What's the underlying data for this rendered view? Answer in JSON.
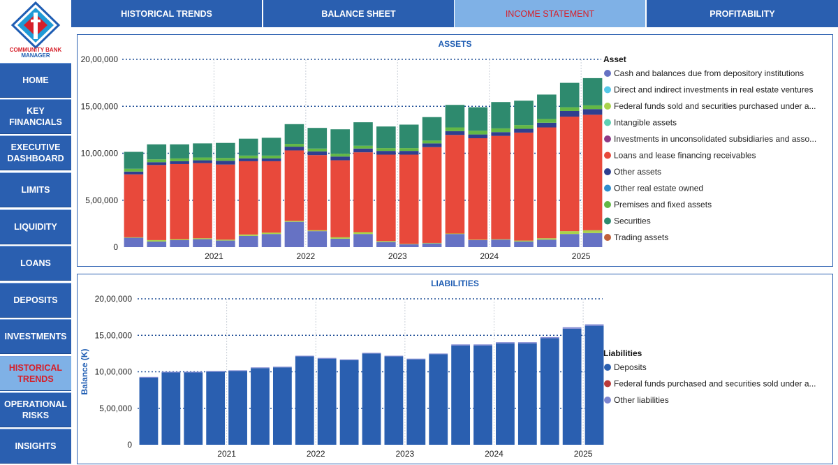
{
  "app": {
    "logo_line1": "COMMUNITY BANK",
    "logo_line2": "MANAGER",
    "colors": {
      "nav": "#2a5fb0",
      "nav_active": "#7fb1e6",
      "active_text": "#d6202a"
    }
  },
  "sidebar": {
    "items": [
      {
        "label": "HOME",
        "active": false
      },
      {
        "label": "KEY\nFINANCIALS",
        "active": false
      },
      {
        "label": "EXECUTIVE\nDASHBOARD",
        "active": false
      },
      {
        "label": "LIMITS",
        "active": false
      },
      {
        "label": "LIQUIDITY",
        "active": false
      },
      {
        "label": "LOANS",
        "active": false
      },
      {
        "label": "DEPOSITS",
        "active": false
      },
      {
        "label": "INVESTMENTS",
        "active": false
      },
      {
        "label": "HISTORICAL\nTRENDS",
        "active": true
      },
      {
        "label": "OPERATIONAL\nRISKS",
        "active": false
      },
      {
        "label": "INSIGHTS",
        "active": false
      }
    ]
  },
  "tabs": [
    {
      "label": "HISTORICAL TRENDS",
      "active": false
    },
    {
      "label": "BALANCE SHEET",
      "active": false
    },
    {
      "label": "INCOME STATEMENT",
      "active": true
    },
    {
      "label": "PROFITABILITY",
      "active": false
    }
  ],
  "chart_data": [
    {
      "type": "bar",
      "stacked": true,
      "title": "ASSETS",
      "xlabel": "",
      "ylabel": "",
      "ylim": [
        0,
        2000000
      ],
      "yticks": [
        0,
        500000,
        1000000,
        1500000,
        2000000
      ],
      "ytick_labels": [
        "0",
        "5,00,000",
        "10,00,000",
        "15,00,000",
        "20,00,000"
      ],
      "year_labels": [
        "2021",
        "2022",
        "2023",
        "2024",
        "2025"
      ],
      "year_label_bar_index": [
        3.5,
        7.5,
        11.5,
        15.5,
        19.5
      ],
      "year_divider_bar_index": [
        3.5,
        7.5,
        11.5,
        15.5,
        19.5
      ],
      "bar_count": 21,
      "legend_title": "Asset",
      "legend_position": "right",
      "series": [
        {
          "name": "Cash and balances due from depository institutions",
          "color": "#6672c4",
          "values": [
            100000,
            60000,
            75000,
            85000,
            70000,
            120000,
            140000,
            270000,
            170000,
            90000,
            140000,
            55000,
            30000,
            40000,
            140000,
            75000,
            80000,
            60000,
            80000,
            140000,
            150000
          ]
        },
        {
          "name": "Direct and indirect investments in real estate ventures",
          "color": "#56c8e8",
          "values": [
            0,
            0,
            0,
            0,
            0,
            0,
            0,
            0,
            0,
            0,
            0,
            0,
            0,
            0,
            0,
            0,
            0,
            0,
            0,
            0,
            0
          ]
        },
        {
          "name": "Federal funds sold and securities purchased under a...",
          "color": "#a9d34b",
          "values": [
            5000,
            15000,
            10000,
            10000,
            10000,
            15000,
            15000,
            10000,
            10000,
            15000,
            20000,
            10000,
            5000,
            5000,
            5000,
            5000,
            5000,
            10000,
            15000,
            30000,
            30000
          ]
        },
        {
          "name": "Intangible assets",
          "color": "#5fd0b3",
          "values": [
            0,
            0,
            0,
            0,
            0,
            0,
            0,
            0,
            0,
            0,
            0,
            0,
            0,
            0,
            0,
            0,
            0,
            0,
            0,
            0,
            0
          ]
        },
        {
          "name": "Investments in unconsolidated subsidiaries and asso...",
          "color": "#8e3a86",
          "values": [
            0,
            0,
            0,
            0,
            0,
            0,
            0,
            0,
            0,
            0,
            0,
            0,
            0,
            0,
            0,
            0,
            0,
            0,
            0,
            0,
            0
          ]
        },
        {
          "name": "Loans and lease financing receivables",
          "color": "#e8493b",
          "values": [
            670000,
            800000,
            800000,
            800000,
            800000,
            780000,
            760000,
            750000,
            800000,
            820000,
            850000,
            920000,
            950000,
            1020000,
            1050000,
            1080000,
            1100000,
            1150000,
            1180000,
            1220000,
            1230000
          ]
        },
        {
          "name": "Other assets",
          "color": "#2f3f8f",
          "values": [
            30000,
            30000,
            30000,
            30000,
            40000,
            30000,
            30000,
            40000,
            40000,
            40000,
            40000,
            40000,
            40000,
            40000,
            40000,
            40000,
            40000,
            40000,
            50000,
            60000,
            60000
          ]
        },
        {
          "name": "Other real estate owned",
          "color": "#2f8fcf",
          "values": [
            0,
            0,
            0,
            0,
            0,
            0,
            0,
            0,
            0,
            0,
            0,
            0,
            0,
            0,
            0,
            0,
            0,
            0,
            0,
            0,
            0
          ]
        },
        {
          "name": "Premises and fixed assets",
          "color": "#63b845",
          "values": [
            30000,
            30000,
            30000,
            30000,
            30000,
            30000,
            30000,
            30000,
            30000,
            30000,
            30000,
            30000,
            30000,
            30000,
            40000,
            40000,
            40000,
            40000,
            40000,
            40000,
            40000
          ]
        },
        {
          "name": "Securities",
          "color": "#2e8a6e",
          "values": [
            180000,
            160000,
            150000,
            150000,
            160000,
            180000,
            190000,
            210000,
            220000,
            260000,
            250000,
            230000,
            250000,
            250000,
            240000,
            250000,
            280000,
            260000,
            260000,
            260000,
            290000
          ]
        },
        {
          "name": "Trading assets",
          "color": "#c2603a",
          "values": [
            0,
            0,
            0,
            0,
            0,
            0,
            0,
            0,
            0,
            0,
            0,
            0,
            0,
            0,
            0,
            0,
            0,
            0,
            0,
            0,
            0
          ]
        }
      ]
    },
    {
      "type": "bar",
      "stacked": true,
      "title": "LIABILITIES",
      "xlabel": "",
      "ylabel": "Balance (K)",
      "ylim": [
        0,
        2000000
      ],
      "yticks": [
        0,
        500000,
        1000000,
        1500000,
        2000000
      ],
      "ytick_labels": [
        "0",
        "5,00,000",
        "10,00,000",
        "15,00,000",
        "20,00,000"
      ],
      "year_labels": [
        "2021",
        "2022",
        "2023",
        "2024",
        "2025"
      ],
      "year_label_bar_index": [
        3.5,
        7.5,
        11.5,
        15.5,
        19.5
      ],
      "year_divider_bar_index": [
        3.5,
        7.5,
        11.5,
        15.5,
        19.5
      ],
      "bar_count": 21,
      "legend_title": "Liabilities",
      "legend_position": "right",
      "series": [
        {
          "name": "Deposits",
          "color": "#2a5fb0",
          "values": [
            920000,
            990000,
            990000,
            1000000,
            1010000,
            1050000,
            1060000,
            1210000,
            1180000,
            1160000,
            1250000,
            1210000,
            1170000,
            1240000,
            1360000,
            1360000,
            1390000,
            1390000,
            1460000,
            1590000,
            1630000
          ]
        },
        {
          "name": "Federal funds purchased and securities sold under a...",
          "color": "#b83a3a",
          "values": [
            0,
            0,
            0,
            0,
            0,
            0,
            0,
            0,
            0,
            0,
            0,
            0,
            0,
            0,
            0,
            0,
            0,
            0,
            0,
            0,
            0
          ]
        },
        {
          "name": "Other liabilities",
          "color": "#7d86d0",
          "values": [
            10000,
            10000,
            10000,
            10000,
            10000,
            10000,
            10000,
            10000,
            10000,
            10000,
            10000,
            10000,
            10000,
            10000,
            15000,
            15000,
            15000,
            15000,
            15000,
            20000,
            20000
          ]
        }
      ]
    }
  ]
}
